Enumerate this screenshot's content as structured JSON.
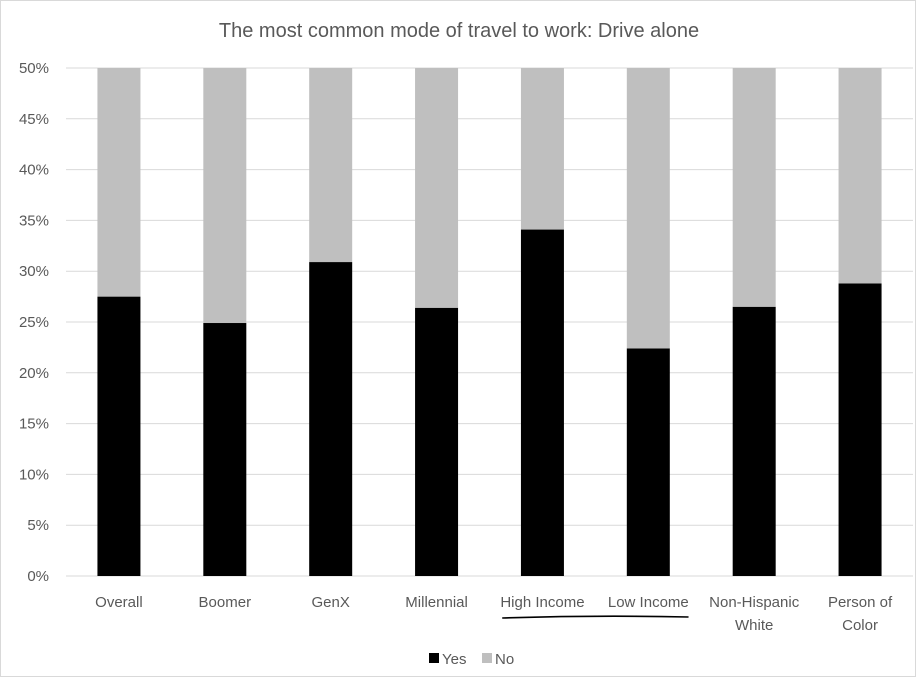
{
  "chart_data": {
    "type": "bar",
    "stacked": true,
    "title": "The most common mode of travel to work: Drive alone",
    "xlabel": "",
    "ylabel": "",
    "ylim": [
      0,
      0.5
    ],
    "y_ticks": [
      "0%",
      "5%",
      "10%",
      "15%",
      "20%",
      "25%",
      "30%",
      "35%",
      "40%",
      "45%",
      "50%"
    ],
    "grid": true,
    "legend_position": "bottom",
    "categories": [
      [
        "Overall"
      ],
      [
        "Boomer"
      ],
      [
        "GenX"
      ],
      [
        "Millennial"
      ],
      [
        "High Income"
      ],
      [
        "Low Income"
      ],
      [
        "Non-Hispanic",
        "White"
      ],
      [
        "Person of",
        "Color"
      ]
    ],
    "series": [
      {
        "name": "Yes",
        "color": "#000000",
        "values": [
          0.275,
          0.249,
          0.309,
          0.264,
          0.341,
          0.224,
          0.265,
          0.288
        ]
      },
      {
        "name": "No",
        "color": "#bfbfbf",
        "values": [
          0.225,
          0.251,
          0.191,
          0.236,
          0.159,
          0.276,
          0.235,
          0.212
        ]
      }
    ],
    "annotations": [
      {
        "type": "underline",
        "spans_categories": [
          "High Income",
          "Low Income"
        ]
      }
    ]
  }
}
